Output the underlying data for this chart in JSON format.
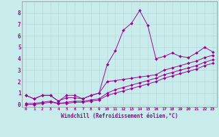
{
  "xlabel": "Windchill (Refroidissement éolien,°C)",
  "background_color": "#c8ecec",
  "grid_color": "#aadddd",
  "line_color": "#990099",
  "xlim": [
    -0.5,
    23.5
  ],
  "ylim": [
    -0.2,
    9.0
  ],
  "xtick_labels": [
    "0",
    "1",
    "2",
    "3",
    "4",
    "5",
    "6",
    "7",
    "8",
    "9",
    "10",
    "11",
    "12",
    "13",
    "14",
    "15",
    "16",
    "17",
    "18",
    "19",
    "20",
    "21",
    "22",
    "23"
  ],
  "ytick_labels": [
    "0",
    "1",
    "2",
    "3",
    "4",
    "5",
    "6",
    "7",
    "8"
  ],
  "series": [
    [
      0.8,
      0.5,
      0.8,
      0.8,
      0.3,
      0.8,
      0.8,
      0.5,
      0.8,
      1.0,
      3.5,
      4.7,
      6.5,
      7.1,
      8.2,
      6.9,
      4.0,
      4.2,
      4.5,
      4.2,
      4.1,
      4.5,
      5.0,
      4.6
    ],
    [
      0.8,
      0.5,
      0.8,
      0.8,
      0.3,
      0.6,
      0.6,
      0.5,
      0.8,
      1.0,
      2.0,
      2.1,
      2.2,
      2.3,
      2.4,
      2.5,
      2.6,
      3.0,
      3.2,
      3.4,
      3.6,
      3.8,
      4.1,
      4.3
    ],
    [
      0.1,
      0.1,
      0.2,
      0.3,
      0.1,
      0.2,
      0.3,
      0.3,
      0.4,
      0.5,
      1.0,
      1.3,
      1.5,
      1.7,
      1.9,
      2.1,
      2.3,
      2.6,
      2.8,
      3.0,
      3.2,
      3.4,
      3.7,
      3.9
    ],
    [
      0.0,
      0.0,
      0.1,
      0.2,
      0.1,
      0.1,
      0.2,
      0.2,
      0.3,
      0.4,
      0.8,
      1.0,
      1.2,
      1.4,
      1.6,
      1.8,
      2.0,
      2.3,
      2.5,
      2.7,
      2.9,
      3.1,
      3.4,
      3.6
    ]
  ]
}
